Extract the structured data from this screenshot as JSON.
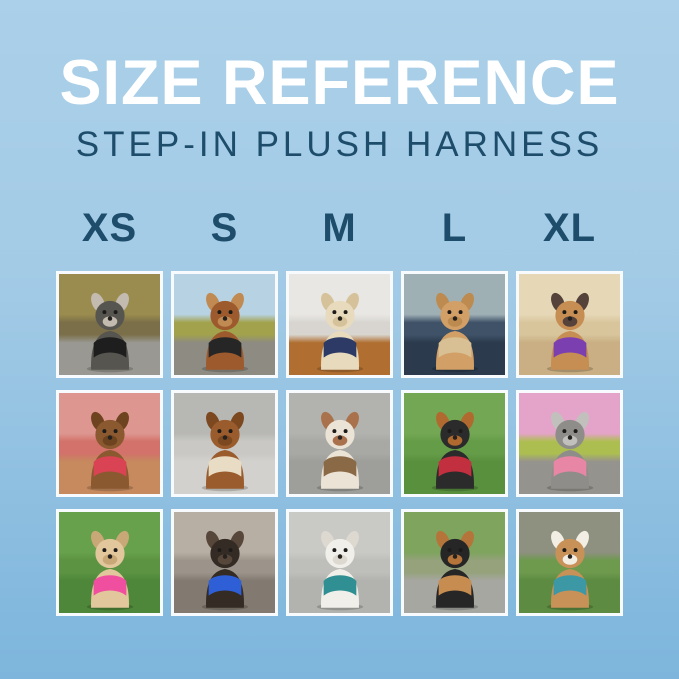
{
  "page": {
    "background_top": "#abd0e9",
    "background_bottom": "#7db5dc",
    "title_color": "#ffffff",
    "heading_color": "#1d4d6b"
  },
  "header": {
    "title": "SIZE REFERENCE",
    "subtitle": "STEP-IN PLUSH HARNESS"
  },
  "sizes": [
    "XS",
    "S",
    "M",
    "L",
    "XL"
  ],
  "grid": {
    "rows": 3,
    "cols": 5,
    "photos": [
      {
        "row": 1,
        "size": "XS",
        "description": "Grey schnauzer mix on a forest path wearing a black harness",
        "harness_color": "black",
        "colors": {
          "scene": [
            "#9a8c4e",
            "#7b6f49",
            "#999892"
          ],
          "fur": "#57554f",
          "accent": "#c3bab0",
          "harness": "#1e1e1e"
        }
      },
      {
        "row": 1,
        "size": "S",
        "description": "Brown dachshund on a rock by autumn trees wearing a black harness",
        "harness_color": "black",
        "colors": {
          "scene": [
            "#b7d2e3",
            "#a2a24c",
            "#8d8b82"
          ],
          "fur": "#9d5b2d",
          "accent": "#c08a52",
          "harness": "#262626"
        }
      },
      {
        "row": 1,
        "size": "M",
        "description": "Cream maltipoo by white blinds on a wood floor wearing a navy harness",
        "harness_color": "navy",
        "colors": {
          "scene": [
            "#e9e7e3",
            "#d8d5d0",
            "#b06f31"
          ],
          "fur": "#e8dabd",
          "accent": "#d6c29a",
          "harness": "#2e3a66"
        }
      },
      {
        "row": 1,
        "size": "L",
        "description": "Apricot goldendoodle in a car seat wearing a tan harness",
        "harness_color": "tan",
        "colors": {
          "scene": [
            "#9fb0b5",
            "#3f5268",
            "#2b3b4d"
          ],
          "fur": "#d2a067",
          "accent": "#bd8a4f",
          "harness": "#d8c094"
        }
      },
      {
        "row": 1,
        "size": "XL",
        "description": "Fawn French bulldog on beach sand with paws up wearing a purple harness",
        "harness_color": "purple",
        "colors": {
          "scene": [
            "#e6d8b6",
            "#d8c59c",
            "#c9af83"
          ],
          "fur": "#c68e53",
          "accent": "#55423a",
          "harness": "#7b3fb0"
        }
      },
      {
        "row": 2,
        "size": "XS",
        "description": "Brown cavapoo sitting in colorful fallen leaves wearing a red harness",
        "harness_color": "red",
        "colors": {
          "scene": [
            "#dd9790",
            "#d2726a",
            "#c68a5e"
          ],
          "fur": "#8a5930",
          "accent": "#6e431f",
          "harness": "#d94353"
        }
      },
      {
        "row": 2,
        "size": "S",
        "description": "Ruby cavalier puppy on pale concrete wearing a cream harness",
        "harness_color": "cream",
        "colors": {
          "scene": [
            "#b7b7b3",
            "#c9c8c4",
            "#d2d1cd"
          ],
          "fur": "#9a5c2c",
          "accent": "#7c4820",
          "harness": "#e8dcc4"
        }
      },
      {
        "row": 2,
        "size": "M",
        "description": "Red-merle Australian shepherd puppy on a sidewalk wearing a brown harness",
        "harness_color": "brown",
        "colors": {
          "scene": [
            "#b2b2ae",
            "#a8a8a4",
            "#9e9e9a"
          ],
          "fur": "#ebe3d6",
          "accent": "#a9724c",
          "harness": "#8a6a46"
        }
      },
      {
        "row": 2,
        "size": "L",
        "description": "Black-and-tan pinscher on green grass with tongue out wearing a red harness",
        "harness_color": "red",
        "colors": {
          "scene": [
            "#73a753",
            "#659c48",
            "#58903e"
          ],
          "fur": "#2b2b2b",
          "accent": "#b06a30",
          "harness": "#c22f3f"
        }
      },
      {
        "row": 2,
        "size": "XL",
        "description": "Grey schnauzer in front of pink azaleas wearing a pink harness",
        "harness_color": "pink",
        "colors": {
          "scene": [
            "#e4a3c9",
            "#adbe51",
            "#95938d"
          ],
          "fur": "#8f8d89",
          "accent": "#c2c0bc",
          "harness": "#e886a6"
        }
      },
      {
        "row": 3,
        "size": "XS",
        "description": "Tan chihuahua on grass looking up wearing a hot-pink harness",
        "harness_color": "hot pink",
        "colors": {
          "scene": [
            "#68a14c",
            "#5b9342",
            "#4e8739"
          ],
          "fur": "#e2c69c",
          "accent": "#c9a877",
          "harness": "#f04fa0"
        }
      },
      {
        "row": 3,
        "size": "S",
        "description": "Black Brussels griffon close-up wearing a blue harness with a bone tag",
        "harness_color": "blue",
        "colors": {
          "scene": [
            "#b7afa3",
            "#9c948a",
            "#827a70"
          ],
          "fur": "#332b24",
          "accent": "#57473a",
          "harness": "#2f5fd6"
        }
      },
      {
        "row": 3,
        "size": "M",
        "description": "White bichon frise on pavement with a teal leash wearing a teal harness",
        "harness_color": "teal",
        "colors": {
          "scene": [
            "#c9c9c5",
            "#bebebb",
            "#b2b2ae"
          ],
          "fur": "#f1efe9",
          "accent": "#ddd9d0",
          "harness": "#2f8f93"
        }
      },
      {
        "row": 3,
        "size": "L",
        "description": "Long-haired black-and-tan dachshund holding a stick toy wearing a tan harness",
        "harness_color": "tan",
        "colors": {
          "scene": [
            "#7ea45e",
            "#95a27c",
            "#a7a7a1"
          ],
          "fur": "#262626",
          "accent": "#b5743a",
          "harness": "#c78c50"
        }
      },
      {
        "row": 3,
        "size": "XL",
        "description": "Beagle on grass with autumn leaves wearing a teal harness",
        "harness_color": "teal",
        "colors": {
          "scene": [
            "#8e9080",
            "#6d9a4d",
            "#5c8b41"
          ],
          "fur": "#c89158",
          "accent": "#f2eee4",
          "harness": "#3d98a6"
        }
      }
    ]
  }
}
